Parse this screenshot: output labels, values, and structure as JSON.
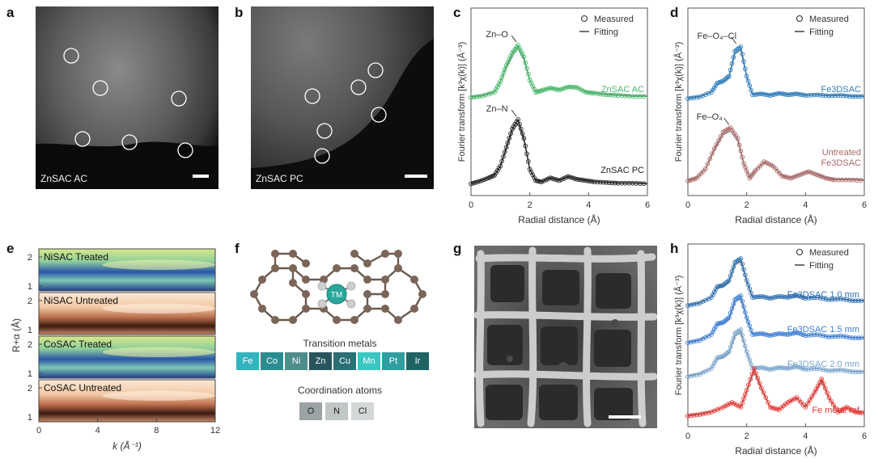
{
  "panels": {
    "a": {
      "letter": "a",
      "caption": "ZnSAC AC"
    },
    "b": {
      "letter": "b",
      "caption": "ZnSAC PC"
    },
    "c": {
      "letter": "c"
    },
    "d": {
      "letter": "d"
    },
    "e": {
      "letter": "e"
    },
    "f": {
      "letter": "f",
      "center_atom": "TM",
      "metals_title": "Transition metals",
      "metals": [
        "Fe",
        "Co",
        "Ni",
        "Zn",
        "Cu",
        "Mn",
        "Pt",
        "Ir"
      ],
      "metal_colors": [
        "#33b3bd",
        "#2a8d8f",
        "#4f8d8a",
        "#27545d",
        "#2c6f74",
        "#39c7c3",
        "#2f9ea1",
        "#1f6462"
      ],
      "coord_title": "Coordination atoms",
      "coord": [
        "O",
        "N",
        "Cl"
      ],
      "coord_colors": [
        "#9ca3a5",
        "#c1c6c6",
        "#d3d7d6"
      ]
    },
    "g": {
      "letter": "g"
    },
    "h": {
      "letter": "h"
    }
  },
  "chart_data": [
    {
      "id": "c",
      "type": "line",
      "xlabel": "Radial distance (Å)",
      "ylabel": "Fourier transform [k³χ(k)] (Å⁻³)",
      "xlim": [
        0,
        6
      ],
      "xticks": [
        "0",
        "2",
        "4",
        "6"
      ],
      "legend": {
        "placement": "top-right",
        "entries": [
          "Measured",
          "Fitting"
        ]
      },
      "series": [
        {
          "name": "ZnSAC AC",
          "color": "#47b86a",
          "peak_label": "Zn–O",
          "peak_x": 1.6,
          "x": [
            0,
            0.4,
            0.8,
            1.0,
            1.2,
            1.4,
            1.6,
            1.8,
            2.0,
            2.2,
            2.4,
            2.7,
            3.0,
            3.3,
            3.6,
            3.9,
            4.2,
            4.6,
            5.0,
            5.5,
            6.0
          ],
          "y": [
            0.02,
            0.05,
            0.12,
            0.32,
            0.62,
            0.85,
            1.0,
            0.78,
            0.35,
            0.12,
            0.15,
            0.2,
            0.16,
            0.22,
            0.21,
            0.12,
            0.1,
            0.07,
            0.06,
            0.04,
            0.04
          ]
        },
        {
          "name": "ZnSAC PC",
          "color": "#222222",
          "peak_label": "Zn–N",
          "peak_x": 1.6,
          "x": [
            0,
            0.3,
            0.6,
            0.8,
            1.0,
            1.2,
            1.4,
            1.6,
            1.8,
            2.0,
            2.2,
            2.4,
            2.7,
            3.0,
            3.3,
            3.6,
            3.9,
            4.2,
            4.6,
            5.0,
            5.5,
            6.0
          ],
          "y": [
            0.03,
            0.07,
            0.12,
            0.16,
            0.3,
            0.58,
            0.86,
            1.0,
            0.72,
            0.25,
            0.08,
            0.06,
            0.12,
            0.08,
            0.14,
            0.1,
            0.08,
            0.06,
            0.05,
            0.04,
            0.04,
            0.03
          ]
        }
      ]
    },
    {
      "id": "d",
      "type": "line",
      "xlabel": "Radial distance (Å)",
      "ylabel": "Fourier transform [k³χ(k)] (Å⁻³)",
      "xlim": [
        0,
        6
      ],
      "xticks": [
        "0",
        "2",
        "4",
        "6"
      ],
      "legend": {
        "placement": "top-right",
        "entries": [
          "Measured",
          "Fitting"
        ]
      },
      "series": [
        {
          "name": "Fe3DSAC",
          "color": "#2f7fbf",
          "peak_label": "Fe–O₄–Cl",
          "peak_x": 1.7,
          "x": [
            0,
            0.4,
            0.8,
            1.0,
            1.2,
            1.4,
            1.6,
            1.8,
            2.0,
            2.2,
            2.5,
            2.8,
            3.1,
            3.4,
            3.7,
            4.0,
            4.4,
            4.8,
            5.2,
            5.6,
            6.0
          ],
          "y": [
            0.03,
            0.06,
            0.15,
            0.32,
            0.36,
            0.45,
            0.92,
            1.0,
            0.45,
            0.1,
            0.12,
            0.09,
            0.13,
            0.1,
            0.12,
            0.09,
            0.1,
            0.08,
            0.09,
            0.07,
            0.07
          ]
        },
        {
          "name": "Untreated Fe3DSAC",
          "color": "#a86a68",
          "peak_label": "Fe–O₄",
          "peak_x": 1.45,
          "x": [
            0,
            0.3,
            0.6,
            0.9,
            1.2,
            1.45,
            1.7,
            1.9,
            2.1,
            2.3,
            2.6,
            2.9,
            3.2,
            3.5,
            3.8,
            4.1,
            4.4,
            4.7,
            5.0,
            5.5,
            6.0
          ],
          "y": [
            0.03,
            0.08,
            0.25,
            0.62,
            0.92,
            1.0,
            0.8,
            0.35,
            0.08,
            0.22,
            0.38,
            0.3,
            0.12,
            0.08,
            0.14,
            0.2,
            0.14,
            0.08,
            0.05,
            0.05,
            0.04
          ]
        }
      ]
    },
    {
      "id": "e",
      "type": "heatmap",
      "xlabel": "k (Å⁻¹)",
      "ylabel": "R+α (Å)",
      "xlim": [
        0,
        12
      ],
      "xticks": [
        "0",
        "4",
        "8",
        "12"
      ],
      "rows": [
        {
          "name": "NiSAC Treated",
          "yticks": [
            "1",
            "2"
          ],
          "scheme": "cool"
        },
        {
          "name": "NiSAC Untreated",
          "yticks": [
            "1",
            "2"
          ],
          "scheme": "warm"
        },
        {
          "name": "CoSAC Treated",
          "yticks": [
            "1",
            "2"
          ],
          "scheme": "cool"
        },
        {
          "name": "CoSAC Untreated",
          "yticks": [
            "1",
            "2"
          ],
          "scheme": "warm"
        }
      ]
    },
    {
      "id": "h",
      "type": "line",
      "xlabel": "Radial distance (Å)",
      "ylabel": "Fourier transform [k³χ(k)] (Å⁻³)",
      "xlim": [
        0,
        6
      ],
      "xticks": [
        "0",
        "2",
        "4",
        "6"
      ],
      "legend": {
        "placement": "top-right",
        "entries": [
          "Measured",
          "Fitting"
        ]
      },
      "series": [
        {
          "name": "Fe3DSAC 1.0 mm",
          "color": "#2f6fb0",
          "x": [
            0,
            0.4,
            0.8,
            1.0,
            1.2,
            1.4,
            1.6,
            1.8,
            2.0,
            2.2,
            2.5,
            2.8,
            3.1,
            3.4,
            3.7,
            4.0,
            4.4,
            4.8,
            5.2,
            5.6,
            6.0
          ],
          "y": [
            0.03,
            0.08,
            0.2,
            0.42,
            0.45,
            0.55,
            0.92,
            1.0,
            0.55,
            0.2,
            0.22,
            0.18,
            0.22,
            0.2,
            0.24,
            0.18,
            0.2,
            0.15,
            0.17,
            0.13,
            0.13
          ]
        },
        {
          "name": "Fe3DSAC 1.5 mm",
          "color": "#3d7fd6",
          "x": [
            0,
            0.4,
            0.8,
            1.0,
            1.2,
            1.4,
            1.6,
            1.8,
            2.0,
            2.2,
            2.5,
            2.8,
            3.1,
            3.4,
            3.7,
            4.0,
            4.4,
            4.8,
            5.2,
            5.6,
            6.0
          ],
          "y": [
            0.03,
            0.08,
            0.2,
            0.42,
            0.45,
            0.55,
            0.92,
            1.0,
            0.55,
            0.2,
            0.22,
            0.18,
            0.22,
            0.2,
            0.24,
            0.18,
            0.2,
            0.15,
            0.17,
            0.13,
            0.13
          ]
        },
        {
          "name": "Fe3DSAC 2.0 mm",
          "color": "#7aa6cf",
          "x": [
            0,
            0.4,
            0.8,
            1.0,
            1.2,
            1.4,
            1.6,
            1.8,
            2.0,
            2.2,
            2.5,
            2.8,
            3.1,
            3.4,
            3.7,
            4.0,
            4.4,
            4.8,
            5.2,
            5.6,
            6.0
          ],
          "y": [
            0.03,
            0.08,
            0.2,
            0.42,
            0.45,
            0.55,
            0.92,
            1.0,
            0.55,
            0.2,
            0.22,
            0.18,
            0.22,
            0.2,
            0.24,
            0.18,
            0.2,
            0.15,
            0.17,
            0.13,
            0.13
          ]
        },
        {
          "name": "Fe metal ref",
          "color": "#e53935",
          "x": [
            0,
            0.4,
            0.8,
            1.2,
            1.5,
            1.8,
            2.0,
            2.25,
            2.5,
            2.8,
            3.1,
            3.4,
            3.7,
            4.0,
            4.3,
            4.55,
            4.8,
            5.1,
            5.4,
            5.7,
            6.0
          ],
          "y": [
            0.02,
            0.05,
            0.1,
            0.2,
            0.3,
            0.2,
            0.55,
            1.0,
            0.6,
            0.2,
            0.15,
            0.3,
            0.4,
            0.2,
            0.5,
            0.78,
            0.4,
            0.1,
            0.2,
            0.1,
            0.08
          ]
        }
      ]
    }
  ]
}
